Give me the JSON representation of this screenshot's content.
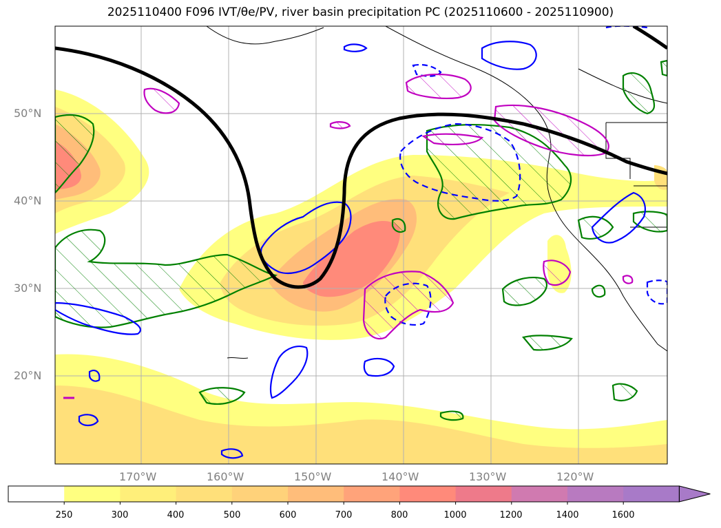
{
  "title": "2025110400 F096 IVT/θe/PV, river basin precipitation PC (2025110600 - 2025110900)",
  "lat_labels": [
    "50°N",
    "40°N",
    "30°N",
    "20°N"
  ],
  "lon_labels": [
    "170°W",
    "160°W",
    "150°W",
    "140°W",
    "130°W",
    "120°W"
  ],
  "colorbar": {
    "levels": [
      "250",
      "300",
      "400",
      "500",
      "600",
      "700",
      "800",
      "1000",
      "1200",
      "1400",
      "1600"
    ],
    "colors": [
      "#ffffff",
      "#ffff80",
      "#ffef7a",
      "#ffe07a",
      "#ffd27a",
      "#ffbd7a",
      "#ffa37a",
      "#ff8a7a",
      "#ee7a8a",
      "#d07ab0",
      "#b87ac0",
      "#a87ac8"
    ]
  },
  "contour_colors": {
    "green": "#008000",
    "blue": "#0000ff",
    "magenta": "#c000c0",
    "black": "#000000"
  }
}
